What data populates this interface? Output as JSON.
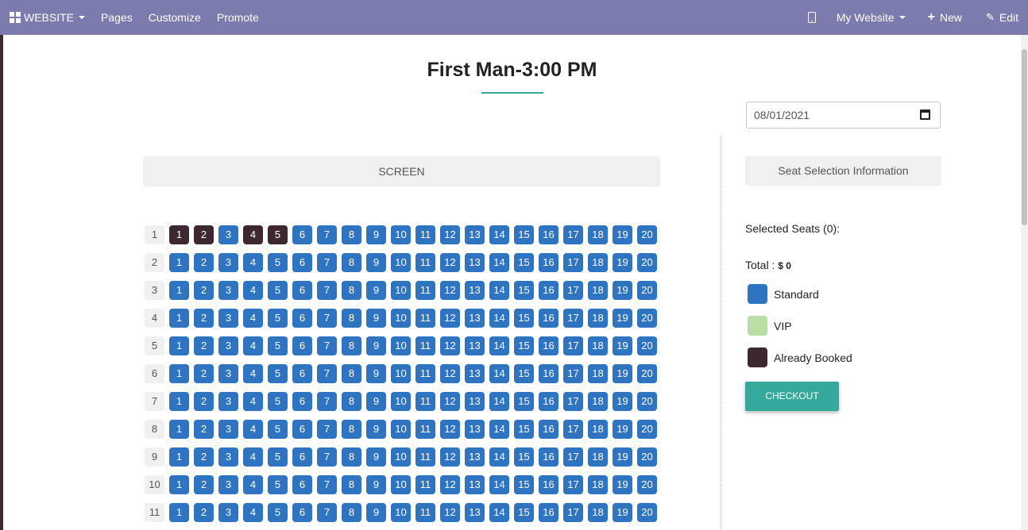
{
  "topbar": {
    "brand": "WEBSITE",
    "menu": [
      "Pages",
      "Customize",
      "Promote"
    ],
    "website_selector": "My Website",
    "new_label": "New",
    "edit_label": "Edit"
  },
  "page": {
    "title": "First Man-3:00 PM",
    "date_value": "08/01/2021",
    "screen_label": "SCREEN",
    "info_header": "Seat Selection Information",
    "selected_seats_label": "Selected Seats (0):",
    "total_label": "Total :",
    "total_value": "$ 0",
    "checkout_label": "CHECKOUT"
  },
  "legend": [
    {
      "label": "Standard",
      "color": "#2f74c0"
    },
    {
      "label": "VIP",
      "color": "#b9dea4"
    },
    {
      "label": "Already Booked",
      "color": "#3d2832"
    }
  ],
  "seatmap": {
    "rows": [
      "1",
      "2",
      "3",
      "4",
      "5",
      "6",
      "7",
      "8",
      "9",
      "10",
      "11"
    ],
    "seats_per_row": [
      "1",
      "2",
      "3",
      "4",
      "5",
      "6",
      "7",
      "8",
      "9",
      "10",
      "11",
      "12",
      "13",
      "14",
      "15",
      "16",
      "17",
      "18",
      "19",
      "20"
    ],
    "booked": [
      {
        "row": "1",
        "seat": "1"
      },
      {
        "row": "1",
        "seat": "2"
      },
      {
        "row": "1",
        "seat": "4"
      },
      {
        "row": "1",
        "seat": "5"
      }
    ],
    "colors": {
      "standard": "#2f74c0",
      "booked": "#3d2832"
    }
  }
}
